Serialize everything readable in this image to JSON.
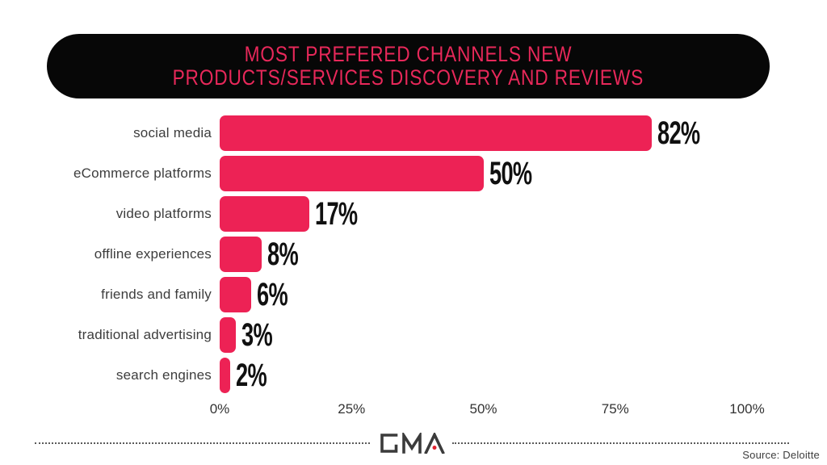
{
  "title": {
    "line1": "MOST PREFERED CHANNELS NEW",
    "line2": "PRODUCTS/SERVICES DISCOVERY AND REVIEWS"
  },
  "chart_data": {
    "type": "bar",
    "orientation": "horizontal",
    "title": "MOST PREFERED CHANNELS NEW PRODUCTS/SERVICES DISCOVERY AND REVIEWS",
    "categories": [
      "social media",
      "eCommerce platforms",
      "video platforms",
      "offline experiences",
      "friends and family",
      "traditional advertising",
      "search engines"
    ],
    "values": [
      82,
      50,
      17,
      8,
      6,
      3,
      2
    ],
    "value_labels": [
      "82%",
      "50%",
      "17%",
      "8%",
      "6%",
      "3%",
      "2%"
    ],
    "x_ticks": [
      "0%",
      "25%",
      "50%",
      "75%",
      "100%"
    ],
    "xlim": [
      0,
      100
    ],
    "grid": false,
    "legend": "none",
    "bar_color": "#ED2255"
  },
  "colors": {
    "title_text": "#E8285A",
    "banner_bg": "#070707",
    "label_text": "#3d3d3d",
    "value_text": "#101010",
    "logo_dot": "#E02330"
  },
  "footer": {
    "logo_text": "GMA",
    "source": "Source: Deloitte"
  }
}
